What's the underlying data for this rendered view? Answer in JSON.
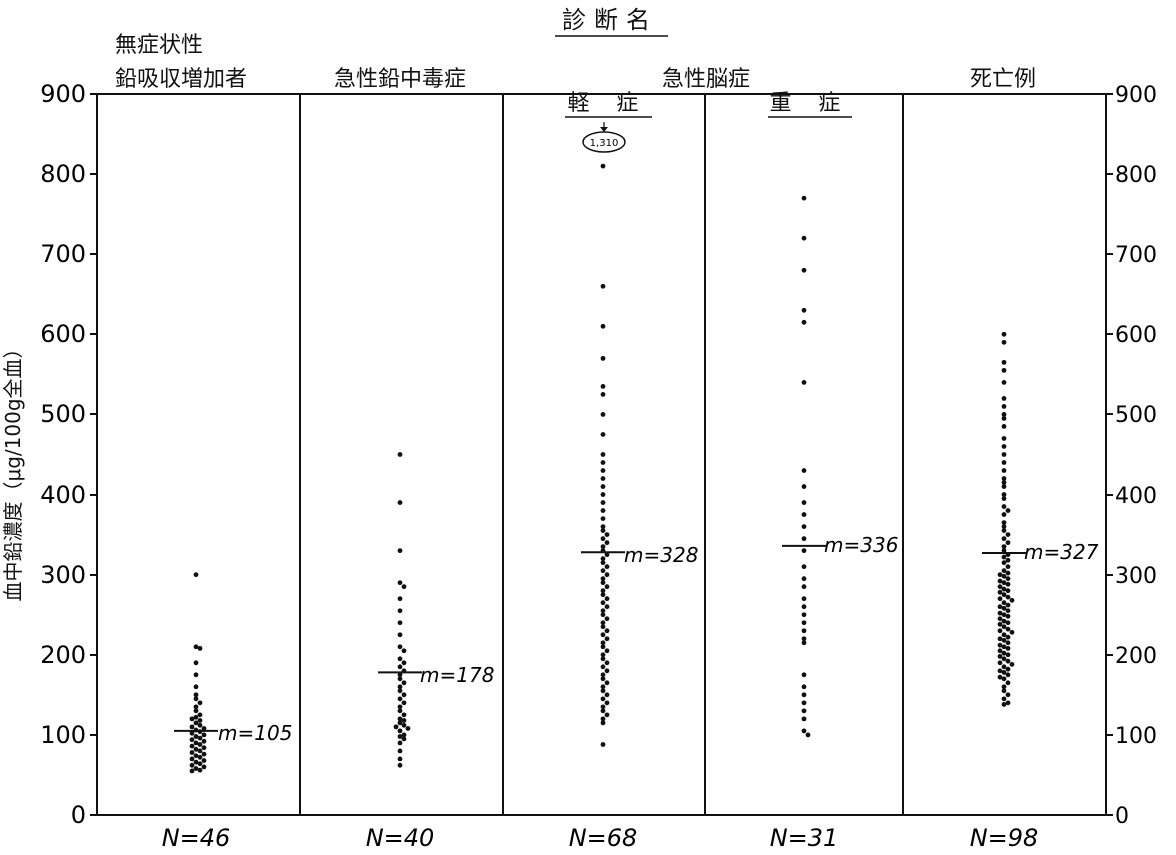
{
  "chart_data": {
    "type": "scatter",
    "title": "診断名",
    "ylabel": "血中鉛濃度（μg/100g全血）",
    "ylim": [
      0,
      900
    ],
    "y_ticks": [
      0,
      100,
      200,
      300,
      400,
      500,
      600,
      700,
      800,
      900
    ],
    "y_tick_labels_left": [
      "0",
      "100",
      "200",
      "300",
      "400",
      "500",
      "600",
      "700",
      "800",
      "900"
    ],
    "y_tick_labels_right": [
      "0",
      "100",
      "200",
      "300",
      "400",
      "500",
      "600",
      "700",
      "800",
      "900"
    ],
    "grid": false,
    "group_header": "急性脳症",
    "outlier_label": "1,310",
    "groups": [
      {
        "id": "g1",
        "label_lines": [
          "無症状性",
          "鉛吸収増加者"
        ],
        "n_label": "N=46",
        "mean_label": "m=105",
        "mean": 105,
        "values": [
          300,
          210,
          208,
          190,
          175,
          160,
          150,
          145,
          140,
          135,
          130,
          125,
          122,
          118,
          115,
          112,
          110,
          108,
          106,
          104,
          102,
          100,
          98,
          96,
          94,
          92,
          90,
          88,
          86,
          84,
          82,
          80,
          78,
          76,
          74,
          72,
          70,
          68,
          66,
          64,
          62,
          60,
          58,
          56,
          55,
          120
        ]
      },
      {
        "id": "g2",
        "label_lines": [
          "急性鉛中毒症"
        ],
        "n_label": "N=40",
        "mean_label": "m=178",
        "mean": 178,
        "values": [
          450,
          390,
          330,
          290,
          285,
          270,
          255,
          240,
          225,
          210,
          205,
          195,
          190,
          185,
          180,
          175,
          170,
          165,
          160,
          155,
          150,
          145,
          140,
          135,
          130,
          125,
          120,
          118,
          115,
          112,
          110,
          108,
          105,
          100,
          98,
          95,
          90,
          80,
          70,
          62
        ]
      },
      {
        "id": "g3",
        "label_lines": [
          "軽 症"
        ],
        "n_label": "N=68",
        "mean_label": "m=328",
        "mean": 328,
        "values": [
          810,
          660,
          610,
          570,
          535,
          525,
          500,
          475,
          450,
          440,
          430,
          420,
          410,
          400,
          390,
          380,
          370,
          360,
          355,
          350,
          345,
          340,
          335,
          330,
          325,
          320,
          315,
          310,
          305,
          300,
          295,
          290,
          285,
          280,
          275,
          270,
          265,
          260,
          255,
          250,
          245,
          240,
          235,
          230,
          225,
          220,
          215,
          210,
          205,
          200,
          195,
          190,
          185,
          180,
          175,
          170,
          165,
          160,
          155,
          150,
          145,
          140,
          135,
          130,
          125,
          120,
          115,
          88
        ]
      },
      {
        "id": "g4",
        "label_lines": [
          "重 症"
        ],
        "n_label": "N=31",
        "mean_label": "m=336",
        "mean": 336,
        "values": [
          770,
          720,
          680,
          630,
          615,
          540,
          430,
          410,
          390,
          375,
          360,
          345,
          330,
          310,
          295,
          285,
          270,
          260,
          250,
          240,
          230,
          220,
          215,
          175,
          160,
          150,
          140,
          130,
          120,
          105,
          100
        ]
      },
      {
        "id": "g5",
        "label_lines": [
          "死亡例"
        ],
        "n_label": "N=98",
        "mean_label": "m=327",
        "mean": 327,
        "values": [
          600,
          590,
          565,
          555,
          540,
          520,
          510,
          500,
          495,
          485,
          470,
          460,
          450,
          440,
          430,
          420,
          415,
          410,
          400,
          395,
          385,
          380,
          375,
          365,
          360,
          355,
          350,
          345,
          340,
          335,
          330,
          325,
          322,
          318,
          315,
          310,
          305,
          302,
          300,
          298,
          295,
          292,
          290,
          288,
          285,
          282,
          280,
          278,
          275,
          272,
          270,
          268,
          265,
          262,
          260,
          258,
          255,
          252,
          250,
          248,
          245,
          242,
          240,
          238,
          235,
          232,
          230,
          228,
          225,
          222,
          220,
          218,
          215,
          212,
          210,
          208,
          205,
          202,
          200,
          198,
          195,
          192,
          190,
          188,
          185,
          182,
          180,
          178,
          175,
          172,
          170,
          165,
          160,
          155,
          150,
          145,
          140,
          138
        ]
      }
    ]
  }
}
